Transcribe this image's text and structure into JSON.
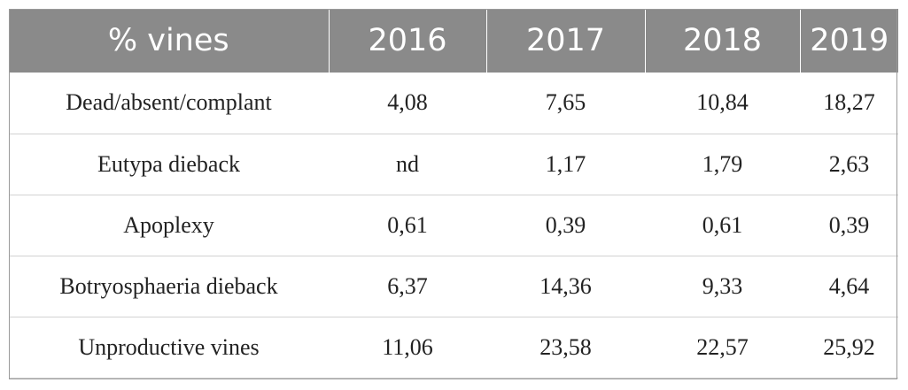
{
  "table": {
    "headers": [
      "% vines",
      "2016",
      "2017",
      "2018",
      "2019"
    ],
    "rows": [
      [
        "Dead/absent/complant",
        "4,08",
        "7,65",
        "10,84",
        "18,27"
      ],
      [
        "Eutypa dieback",
        "nd",
        "1,17",
        "1,79",
        "2,63"
      ],
      [
        "Apoplexy",
        "0,61",
        "0,39",
        "0,61",
        "0,39"
      ],
      [
        "Botryosphaeria dieback",
        "6,37",
        "14,36",
        "9,33",
        "4,64"
      ],
      [
        "Unproductive vines",
        "11,06",
        "23,58",
        "22,57",
        "25,92"
      ]
    ]
  },
  "colors": {
    "header_bg": "#8a8a8a",
    "header_text": "#ffffff",
    "row_divider": "#d2d2d2"
  }
}
